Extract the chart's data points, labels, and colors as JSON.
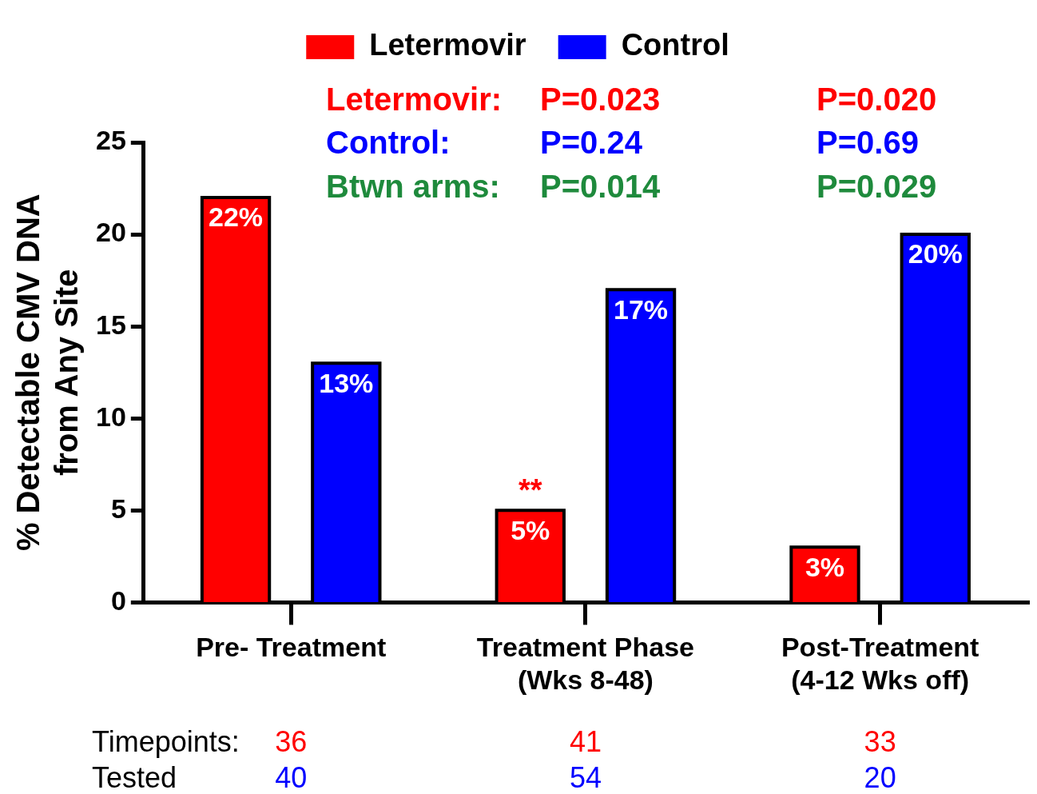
{
  "chart_data": {
    "type": "bar",
    "ylabel": "% Detectable CMV DNA\nfrom Any Site",
    "categories": [
      "Pre- Treatment",
      "Treatment Phase\n(Wks 8-48)",
      "Post-Treatment\n(4-12 Wks off)"
    ],
    "series": [
      {
        "name": "Letermovir",
        "color": "#ff0000",
        "values": [
          22,
          5,
          3
        ],
        "value_labels": [
          "22%",
          "5%",
          "3%"
        ]
      },
      {
        "name": "Control",
        "color": "#0000ff",
        "values": [
          13,
          17,
          20
        ],
        "value_labels": [
          "13%",
          "17%",
          "20%"
        ]
      }
    ],
    "ylim": [
      0,
      25
    ],
    "yticks": [
      0,
      5,
      10,
      15,
      20,
      25
    ],
    "grid": false,
    "legend": "top",
    "annotations": [
      "Letermovir:",
      "P=0.023",
      "P=0.020",
      "Control:",
      "P=0.24",
      "P=0.69",
      "Btwn arms:",
      "P=0.014",
      "P=0.029",
      "**",
      "Timepoints:",
      "36",
      "41",
      "33",
      "Tested",
      "40",
      "54",
      "20"
    ]
  }
}
